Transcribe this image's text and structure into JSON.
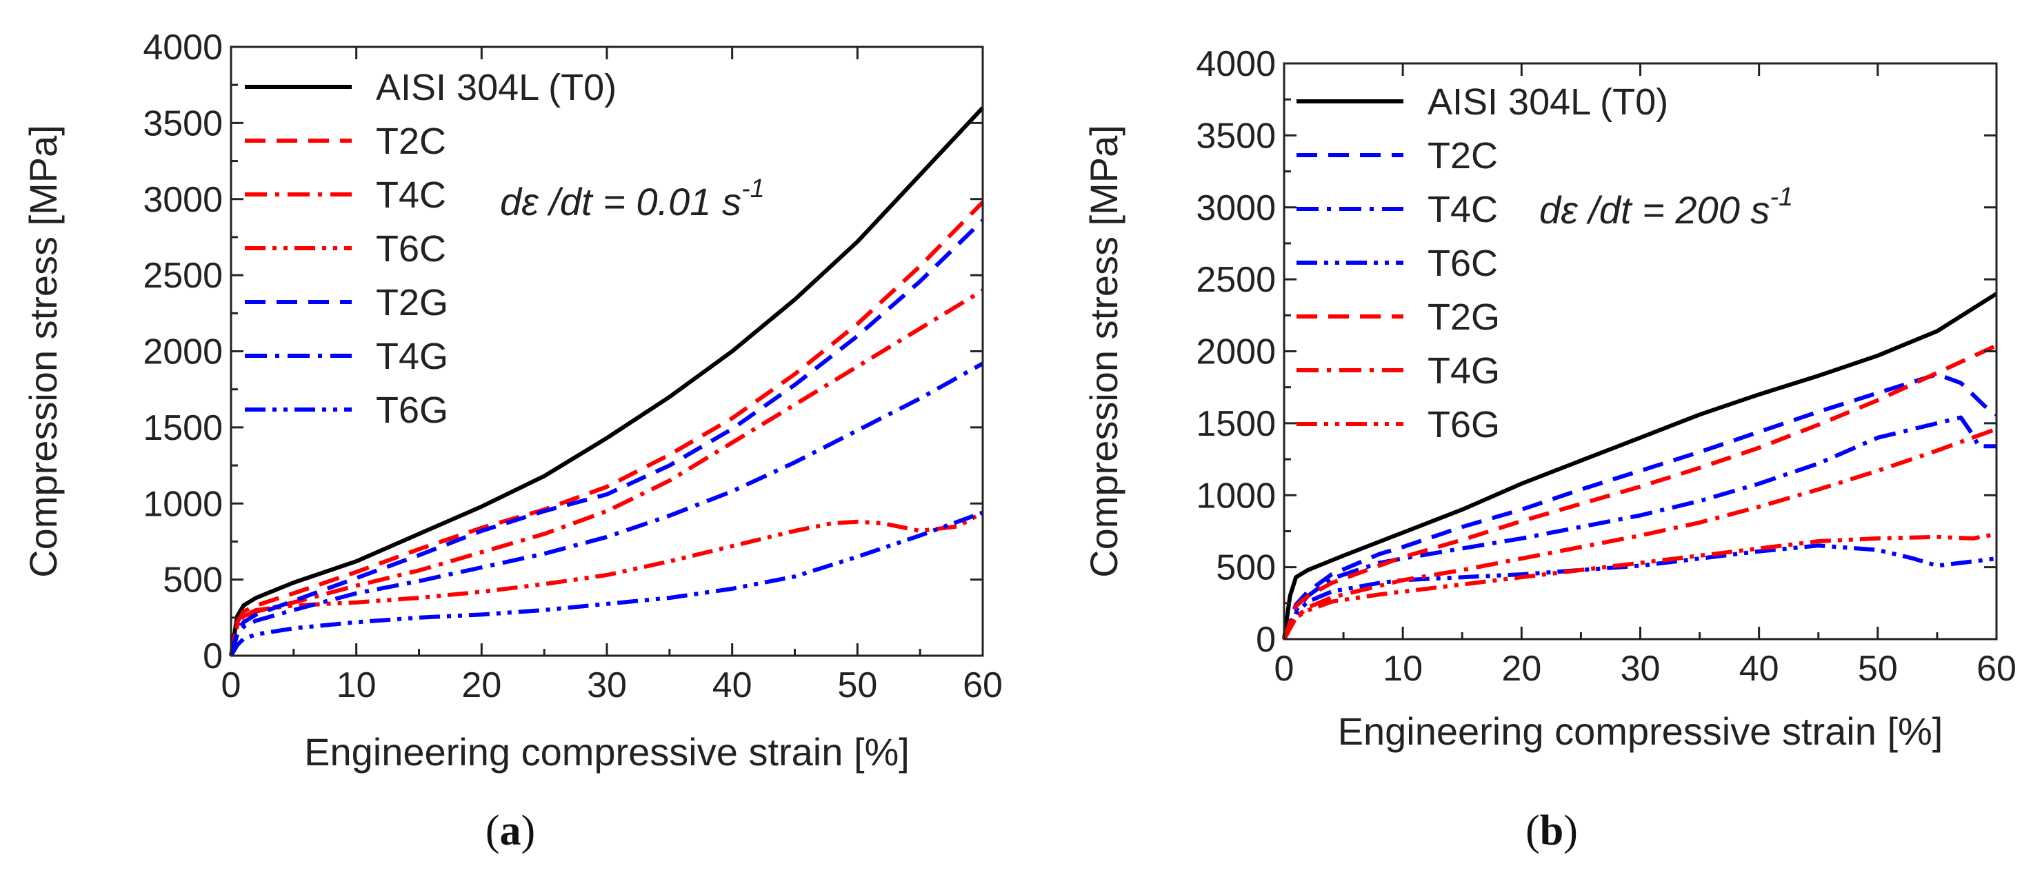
{
  "chart_data": [
    {
      "type": "line",
      "panel_label": "(a)",
      "panel_letter": "a",
      "xlabel": "Engineering compressive strain [%]",
      "ylabel": "Compression stress [MPa]",
      "xlim": [
        0,
        60
      ],
      "ylim": [
        0,
        4000
      ],
      "xticks": [
        "0",
        "10",
        "20",
        "30",
        "40",
        "50",
        "60"
      ],
      "yticks": [
        "0",
        "500",
        "1000",
        "1500",
        "2000",
        "2500",
        "3000",
        "3500",
        "4000"
      ],
      "annotation": {
        "prefix": "d",
        "epsilon": "ε",
        "mid": " /dt = 0.01 s",
        "sup": "-1"
      },
      "legend_position": "top-left",
      "series": [
        {
          "name": "AISI 304L (T0)",
          "color": "#000000",
          "style": "solid",
          "x": [
            0,
            0.5,
            1,
            2,
            5,
            10,
            15,
            20,
            25,
            30,
            35,
            40,
            45,
            50,
            55,
            60
          ],
          "y": [
            0,
            260,
            330,
            380,
            480,
            620,
            800,
            980,
            1180,
            1430,
            1700,
            2000,
            2340,
            2720,
            3160,
            3600
          ]
        },
        {
          "name": "T2C",
          "color": "#ff0000",
          "style": "dashed",
          "x": [
            0,
            0.5,
            1,
            2,
            5,
            10,
            15,
            20,
            25,
            30,
            35,
            40,
            45,
            50,
            55,
            60
          ],
          "y": [
            0,
            220,
            290,
            330,
            410,
            550,
            700,
            840,
            960,
            1110,
            1320,
            1560,
            1850,
            2180,
            2560,
            2980
          ]
        },
        {
          "name": "T4C",
          "color": "#ff0000",
          "style": "dashdot",
          "x": [
            0,
            0.5,
            1,
            2,
            5,
            10,
            15,
            20,
            25,
            30,
            35,
            40,
            45,
            50,
            55,
            60
          ],
          "y": [
            0,
            200,
            260,
            290,
            350,
            460,
            560,
            680,
            800,
            950,
            1150,
            1400,
            1650,
            1900,
            2150,
            2400
          ]
        },
        {
          "name": "T6C",
          "color": "#ff0000",
          "style": "dashdotdot",
          "x": [
            0,
            0.5,
            1,
            2,
            5,
            10,
            15,
            20,
            25,
            30,
            35,
            40,
            45,
            48,
            50,
            52,
            55,
            58,
            60
          ],
          "y": [
            0,
            200,
            260,
            300,
            330,
            350,
            380,
            420,
            470,
            530,
            620,
            720,
            820,
            870,
            880,
            870,
            820,
            850,
            940
          ]
        },
        {
          "name": "T2G",
          "color": "#0000ff",
          "style": "dashed",
          "x": [
            0,
            0.5,
            1,
            2,
            5,
            10,
            15,
            20,
            25,
            30,
            35,
            40,
            45,
            50,
            55,
            60
          ],
          "y": [
            0,
            160,
            220,
            270,
            360,
            510,
            660,
            820,
            950,
            1060,
            1250,
            1490,
            1780,
            2100,
            2460,
            2860
          ]
        },
        {
          "name": "T4G",
          "color": "#0000ff",
          "style": "dashdot",
          "x": [
            0,
            0.5,
            1,
            2,
            5,
            10,
            15,
            20,
            25,
            30,
            35,
            40,
            45,
            50,
            55,
            60
          ],
          "y": [
            0,
            140,
            190,
            230,
            300,
            410,
            490,
            580,
            670,
            780,
            920,
            1080,
            1270,
            1480,
            1690,
            1920
          ]
        },
        {
          "name": "T6G",
          "color": "#0000ff",
          "style": "dashdotdot",
          "x": [
            0,
            0.5,
            1,
            2,
            5,
            10,
            15,
            20,
            25,
            30,
            35,
            40,
            45,
            50,
            55,
            60
          ],
          "y": [
            0,
            70,
            110,
            140,
            180,
            220,
            250,
            270,
            300,
            340,
            380,
            440,
            520,
            650,
            790,
            940
          ]
        }
      ]
    },
    {
      "type": "line",
      "panel_label": "(b)",
      "panel_letter": "b",
      "xlabel": "Engineering compressive strain [%]",
      "ylabel": "Compression stress [MPa]",
      "xlim": [
        0,
        60
      ],
      "ylim": [
        0,
        4000
      ],
      "xticks": [
        "0",
        "10",
        "20",
        "30",
        "40",
        "50",
        "60"
      ],
      "yticks": [
        "0",
        "500",
        "1000",
        "1500",
        "2000",
        "2500",
        "3000",
        "3500",
        "4000"
      ],
      "annotation": {
        "prefix": "d",
        "epsilon": "ε",
        "mid": " /dt = 200 s",
        "sup": "-1"
      },
      "legend_position": "top-left",
      "series": [
        {
          "name": "AISI 304L (T0)",
          "color": "#000000",
          "style": "solid",
          "x": [
            0,
            0.5,
            1,
            2,
            5,
            10,
            15,
            20,
            25,
            30,
            35,
            40,
            45,
            50,
            55,
            60
          ],
          "y": [
            0,
            300,
            430,
            480,
            580,
            740,
            900,
            1080,
            1240,
            1400,
            1560,
            1700,
            1830,
            1970,
            2140,
            2400
          ]
        },
        {
          "name": "T2C",
          "color": "#0000ff",
          "style": "dashed",
          "x": [
            0,
            1,
            2,
            4,
            8,
            10,
            15,
            20,
            25,
            30,
            35,
            40,
            45,
            50,
            55,
            57,
            59,
            60
          ],
          "y": [
            0,
            240,
            330,
            450,
            590,
            640,
            780,
            900,
            1040,
            1170,
            1300,
            1440,
            1580,
            1710,
            1840,
            1780,
            1620,
            1560
          ]
        },
        {
          "name": "T4C",
          "color": "#0000ff",
          "style": "dashdot",
          "x": [
            0,
            1,
            2,
            4,
            8,
            10,
            15,
            20,
            25,
            30,
            35,
            40,
            45,
            50,
            55,
            57,
            58,
            58.5,
            59,
            60
          ],
          "y": [
            0,
            200,
            300,
            420,
            530,
            560,
            630,
            700,
            780,
            860,
            960,
            1080,
            1220,
            1400,
            1500,
            1540,
            1420,
            1340,
            1340,
            1340
          ]
        },
        {
          "name": "T6C",
          "color": "#0000ff",
          "style": "dashdotdot",
          "x": [
            0,
            1,
            2,
            4,
            8,
            10,
            15,
            20,
            25,
            30,
            35,
            40,
            45,
            50,
            53,
            55,
            57,
            60
          ],
          "y": [
            0,
            180,
            260,
            330,
            390,
            410,
            430,
            450,
            480,
            510,
            560,
            610,
            650,
            620,
            560,
            510,
            530,
            560
          ]
        },
        {
          "name": "T2G",
          "color": "#ff0000",
          "style": "dashed",
          "x": [
            0,
            1,
            2,
            4,
            8,
            10,
            15,
            20,
            25,
            30,
            35,
            40,
            45,
            50,
            55,
            60
          ],
          "y": [
            0,
            230,
            300,
            390,
            510,
            570,
            690,
            820,
            940,
            1060,
            1190,
            1330,
            1490,
            1660,
            1850,
            2040
          ]
        },
        {
          "name": "T4G",
          "color": "#ff0000",
          "style": "dashdot",
          "x": [
            0,
            1,
            2,
            4,
            8,
            10,
            15,
            20,
            25,
            30,
            35,
            40,
            45,
            50,
            55,
            60
          ],
          "y": [
            0,
            150,
            220,
            290,
            370,
            410,
            480,
            560,
            640,
            720,
            810,
            920,
            1040,
            1170,
            1310,
            1460
          ]
        },
        {
          "name": "T6G",
          "color": "#ff0000",
          "style": "dashdotdot",
          "x": [
            0,
            1,
            2,
            4,
            8,
            10,
            15,
            20,
            25,
            30,
            35,
            40,
            45,
            50,
            55,
            58,
            60
          ],
          "y": [
            0,
            150,
            200,
            260,
            310,
            330,
            380,
            430,
            480,
            530,
            580,
            630,
            680,
            700,
            710,
            700,
            730
          ]
        }
      ]
    }
  ]
}
